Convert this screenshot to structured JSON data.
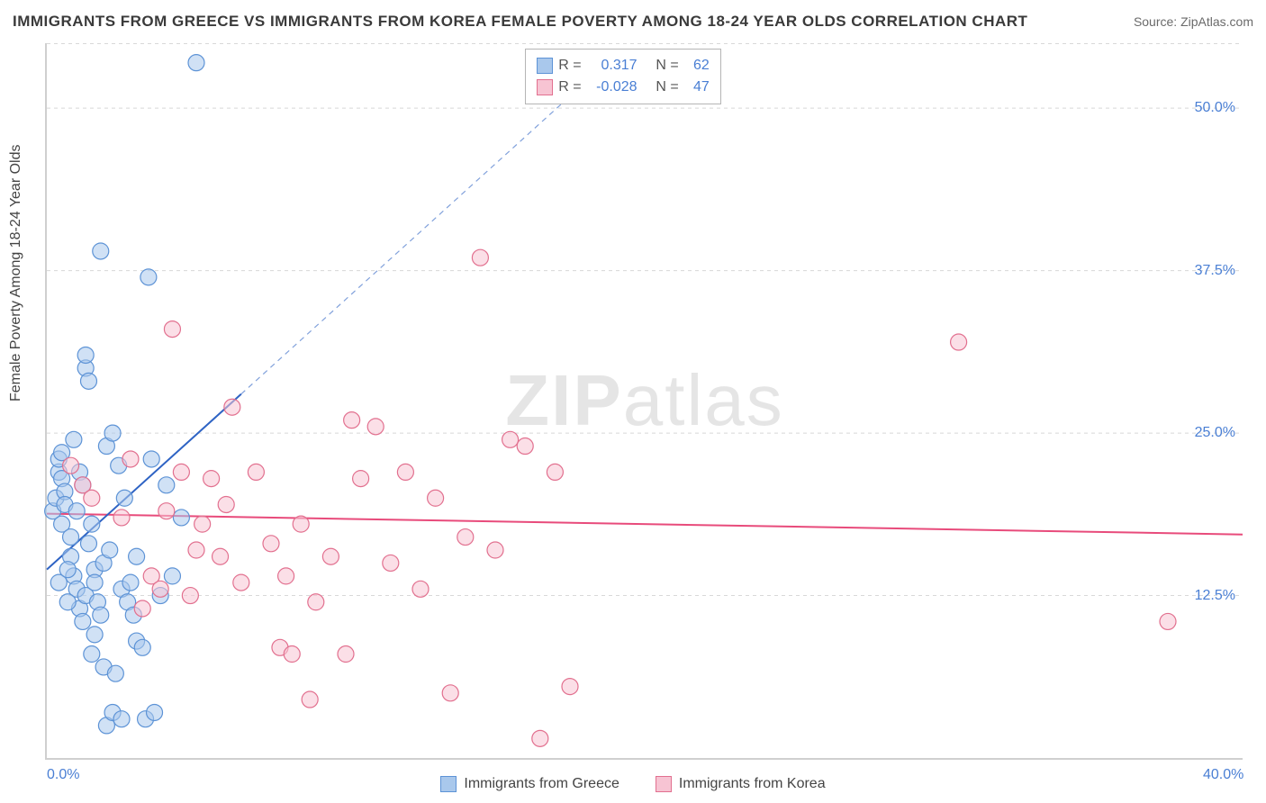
{
  "title": "IMMIGRANTS FROM GREECE VS IMMIGRANTS FROM KOREA FEMALE POVERTY AMONG 18-24 YEAR OLDS CORRELATION CHART",
  "source": "Source: ZipAtlas.com",
  "watermark_bold": "ZIP",
  "watermark_thin": "atlas",
  "y_axis_title": "Female Poverty Among 18-24 Year Olds",
  "chart": {
    "type": "scatter",
    "xlim": [
      0,
      40
    ],
    "ylim": [
      0,
      55
    ],
    "x_ticks": [
      {
        "v": 0,
        "label": "0.0%"
      },
      {
        "v": 40,
        "label": "40.0%"
      }
    ],
    "y_ticks": [
      {
        "v": 12.5,
        "label": "12.5%"
      },
      {
        "v": 25,
        "label": "25.0%"
      },
      {
        "v": 37.5,
        "label": "37.5%"
      },
      {
        "v": 50,
        "label": "50.0%"
      }
    ],
    "background_color": "#ffffff",
    "grid_color": "#d8d8d8",
    "axis_color": "#cfcfcf",
    "marker_radius": 9,
    "marker_stroke_width": 1.2,
    "series": [
      {
        "name": "Immigrants from Greece",
        "fill": "#a9c8ec",
        "stroke": "#5d93d6",
        "r": 0.317,
        "n": 62,
        "trend": {
          "x1": 0,
          "y1": 14.5,
          "x2": 6.5,
          "y2": 28,
          "dash_x2": 18.5,
          "dash_y2": 53,
          "color": "#2e63c4",
          "width": 2
        },
        "points": [
          [
            0.2,
            19
          ],
          [
            0.3,
            20
          ],
          [
            0.4,
            22
          ],
          [
            0.4,
            23
          ],
          [
            0.5,
            18
          ],
          [
            0.5,
            21.5
          ],
          [
            0.5,
            23.5
          ],
          [
            0.6,
            20.5
          ],
          [
            0.6,
            19.5
          ],
          [
            0.8,
            17
          ],
          [
            0.8,
            15.5
          ],
          [
            0.9,
            14
          ],
          [
            0.9,
            24.5
          ],
          [
            1.0,
            13
          ],
          [
            1.0,
            19
          ],
          [
            1.1,
            11.5
          ],
          [
            1.1,
            22
          ],
          [
            1.2,
            10.5
          ],
          [
            1.2,
            21
          ],
          [
            1.3,
            12.5
          ],
          [
            1.3,
            30
          ],
          [
            1.3,
            31
          ],
          [
            1.4,
            29
          ],
          [
            1.5,
            8
          ],
          [
            1.5,
            18
          ],
          [
            1.6,
            14.5
          ],
          [
            1.6,
            13.5
          ],
          [
            1.7,
            12
          ],
          [
            1.8,
            11
          ],
          [
            1.8,
            39
          ],
          [
            1.9,
            7
          ],
          [
            1.9,
            15
          ],
          [
            2.0,
            2.5
          ],
          [
            2.0,
            24
          ],
          [
            2.1,
            16
          ],
          [
            2.2,
            3.5
          ],
          [
            2.2,
            25
          ],
          [
            2.4,
            22.5
          ],
          [
            2.5,
            13
          ],
          [
            2.5,
            3
          ],
          [
            2.7,
            12
          ],
          [
            2.8,
            13.5
          ],
          [
            3.0,
            9
          ],
          [
            3.0,
            15.5
          ],
          [
            3.2,
            8.5
          ],
          [
            3.3,
            3
          ],
          [
            3.4,
            37
          ],
          [
            3.6,
            3.5
          ],
          [
            3.8,
            12.5
          ],
          [
            4.0,
            21
          ],
          [
            4.2,
            14
          ],
          [
            4.5,
            18.5
          ],
          [
            5.0,
            53.5
          ],
          [
            0.4,
            13.5
          ],
          [
            0.7,
            12
          ],
          [
            0.7,
            14.5
          ],
          [
            1.4,
            16.5
          ],
          [
            1.6,
            9.5
          ],
          [
            2.3,
            6.5
          ],
          [
            2.6,
            20
          ],
          [
            2.9,
            11
          ],
          [
            3.5,
            23
          ]
        ]
      },
      {
        "name": "Immigrants from Korea",
        "fill": "#f7c4d3",
        "stroke": "#e2708f",
        "r": -0.028,
        "n": 47,
        "trend": {
          "x1": 0,
          "y1": 18.8,
          "x2": 40,
          "y2": 17.2,
          "color": "#e84b7b",
          "width": 2
        },
        "points": [
          [
            0.8,
            22.5
          ],
          [
            1.2,
            21
          ],
          [
            1.5,
            20
          ],
          [
            2.5,
            18.5
          ],
          [
            2.8,
            23
          ],
          [
            3.5,
            14
          ],
          [
            3.8,
            13
          ],
          [
            4.0,
            19
          ],
          [
            4.2,
            33
          ],
          [
            4.5,
            22
          ],
          [
            4.8,
            12.5
          ],
          [
            5.2,
            18
          ],
          [
            5.5,
            21.5
          ],
          [
            5.8,
            15.5
          ],
          [
            6.2,
            27
          ],
          [
            6.5,
            13.5
          ],
          [
            7.0,
            22
          ],
          [
            7.5,
            16.5
          ],
          [
            7.8,
            8.5
          ],
          [
            8.2,
            8
          ],
          [
            8.5,
            18
          ],
          [
            8.8,
            4.5
          ],
          [
            9.5,
            15.5
          ],
          [
            10.0,
            8
          ],
          [
            10.5,
            21.5
          ],
          [
            11.0,
            25.5
          ],
          [
            11.5,
            15
          ],
          [
            12.0,
            22
          ],
          [
            13.5,
            5
          ],
          [
            14.0,
            17
          ],
          [
            14.5,
            38.5
          ],
          [
            15.0,
            16
          ],
          [
            15.5,
            24.5
          ],
          [
            16.0,
            24
          ],
          [
            16.5,
            1.5
          ],
          [
            17.0,
            22
          ],
          [
            17.5,
            5.5
          ],
          [
            30.5,
            32
          ],
          [
            37.5,
            10.5
          ],
          [
            3.2,
            11.5
          ],
          [
            6.0,
            19.5
          ],
          [
            9.0,
            12
          ],
          [
            10.2,
            26
          ],
          [
            12.5,
            13
          ],
          [
            13.0,
            20
          ],
          [
            8.0,
            14
          ],
          [
            5.0,
            16
          ]
        ]
      }
    ]
  },
  "legend": {
    "greece_label": "Immigrants from Greece",
    "korea_label": "Immigrants from Korea"
  },
  "corr_box": {
    "r_label": "R =",
    "n_label": "N =",
    "greece_r": "0.317",
    "greece_n": "62",
    "korea_r": "-0.028",
    "korea_n": "47"
  },
  "colors": {
    "blue_fill": "#a9c8ec",
    "blue_stroke": "#5d93d6",
    "pink_fill": "#f7c4d3",
    "pink_stroke": "#e2708f",
    "tick_text": "#4a7fd4"
  }
}
